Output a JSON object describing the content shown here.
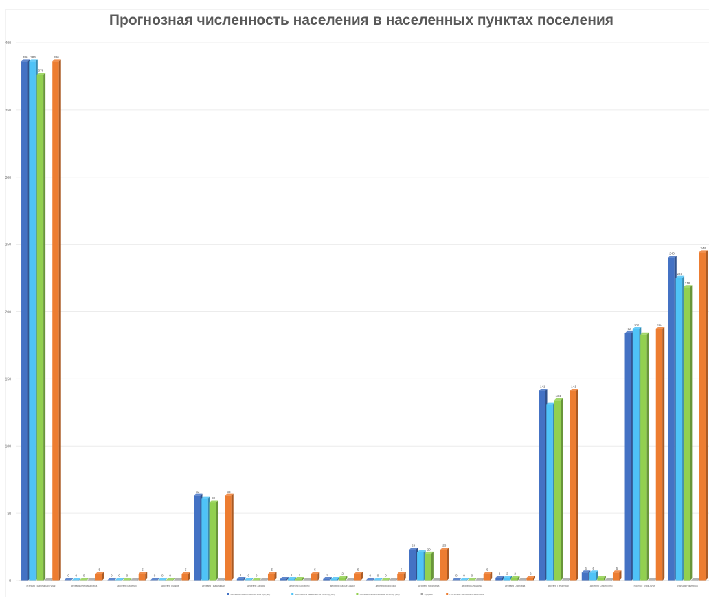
{
  "chart_data": {
    "type": "bar",
    "title": "Прогнозная численность населения в населенных пунктах поселения",
    "xlabel": "",
    "ylabel": "",
    "ylim": [
      0,
      400
    ],
    "yticks": [
      0,
      50,
      100,
      150,
      200,
      250,
      300,
      350,
      400
    ],
    "grid": true,
    "legend_position": "bottom",
    "categories": [
      "станция Подъемный Тупик",
      "деревня Александровка",
      "деревня Беленки",
      "деревня Бурков",
      "деревня Подъемный",
      "деревня Захары",
      "деревня Коровино",
      "деревня Малые Чашки",
      "деревня Морозово",
      "деревня Никитинка",
      "деревня Ольшанка",
      "деревня Осиповка",
      "деревня Печатники",
      "деревня Сластихино",
      "поселок Тупик-пути",
      "станция Никитинка"
    ],
    "series": [
      {
        "name": "Численность населения на 2012 год (чел)",
        "color": "#4472c4",
        "values": [
          386,
          0,
          0,
          0,
          63,
          1,
          1,
          1,
          0,
          23,
          0,
          2,
          141,
          6,
          184,
          240
        ],
        "labels": [
          "386",
          "0",
          "0",
          "0",
          "63",
          "1",
          "1",
          "1",
          "0",
          "23",
          "0",
          "2",
          "141",
          "6",
          "184",
          "240"
        ]
      },
      {
        "name": "Численность населения на 2013 год (чел)",
        "color": "#4fc3f7",
        "values": [
          386,
          0,
          0,
          0,
          61,
          0,
          1,
          1,
          0,
          21,
          0,
          2,
          131,
          6,
          187,
          225
        ],
        "labels": [
          "386",
          "0",
          "0",
          "0",
          "",
          "0",
          "1",
          "1",
          "0",
          "",
          "0",
          "2",
          "",
          "6",
          "187",
          "225"
        ]
      },
      {
        "name": "Численность населения на 2014 год (чел)",
        "color": "#92d050",
        "values": [
          376,
          0,
          0,
          0,
          58,
          0,
          1,
          2,
          0,
          20,
          0,
          2,
          134,
          2,
          183,
          218
        ],
        "labels": [
          "376",
          "0",
          "0",
          "0",
          "58",
          "0",
          "1",
          "2",
          "0",
          "20",
          "0",
          "2",
          "134",
          "",
          "",
          "218"
        ]
      },
      {
        "name": "Среднее",
        "color": "#a5a5a5",
        "values": [
          0,
          0,
          0,
          0,
          0,
          0,
          0,
          0,
          0,
          0,
          0,
          0,
          0,
          0,
          0,
          0
        ],
        "labels": [
          "",
          "",
          "",
          "",
          "",
          "",
          "",
          "",
          "",
          "",
          "",
          "",
          "",
          "",
          "",
          ""
        ]
      },
      {
        "name": "Прогнозная численность населения",
        "color": "#ed7d31",
        "values": [
          386,
          5,
          5,
          5,
          63,
          5,
          5,
          5,
          5,
          23,
          5,
          2,
          141,
          6,
          187,
          244
        ],
        "labels": [
          "386",
          "5",
          "5",
          "5",
          "63",
          "5",
          "5",
          "5",
          "5",
          "23",
          "5",
          "2",
          "141",
          "6",
          "187",
          "244"
        ]
      }
    ]
  }
}
